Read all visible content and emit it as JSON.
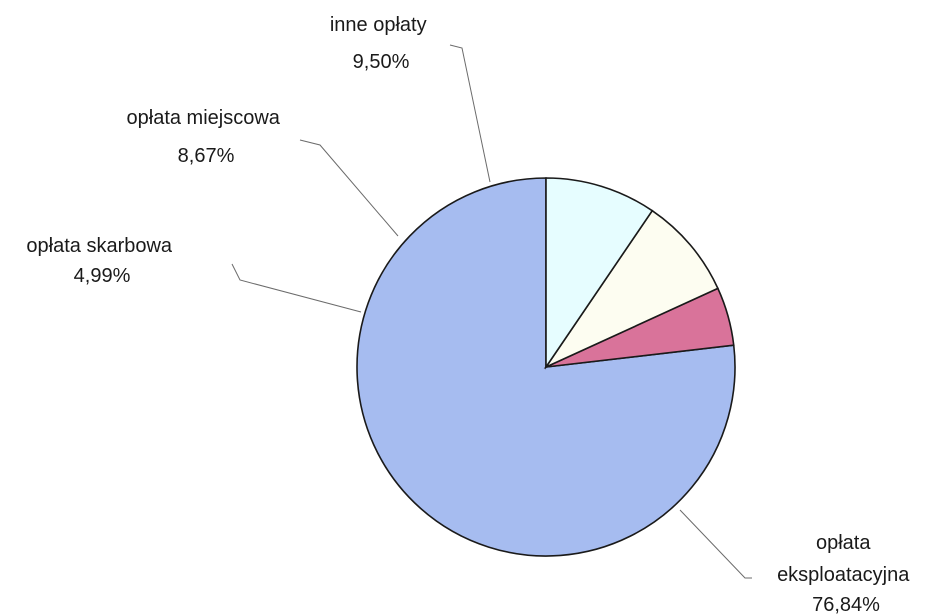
{
  "chart_data": {
    "type": "pie",
    "slices": [
      {
        "label": [
          "opłata",
          "eksploatacyjna"
        ],
        "value": 76.84,
        "value_label": "76,84%",
        "color": "#a6bcf0"
      },
      {
        "label": [
          "opłata skarbowa"
        ],
        "value": 4.99,
        "value_label": "4,99%",
        "color": "#d9739a"
      },
      {
        "label": [
          "opłata miejscowa"
        ],
        "value": 8.67,
        "value_label": "8,67%",
        "color": "#fdfdf1"
      },
      {
        "label": [
          "inne opłaty"
        ],
        "value": 9.5,
        "value_label": "9,50%",
        "color": "#e6fdff"
      }
    ],
    "legend": "none",
    "data_labels": "outside with leader lines"
  }
}
